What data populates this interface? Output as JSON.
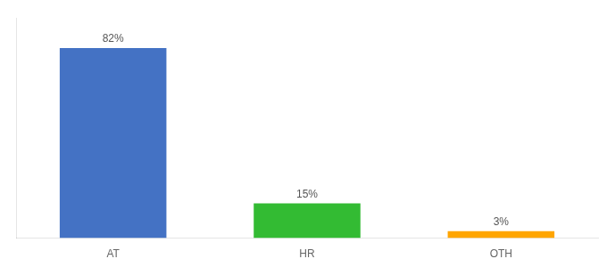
{
  "chart_data": {
    "type": "bar",
    "categories": [
      "AT",
      "HR",
      "OTH"
    ],
    "values": [
      82,
      15,
      3
    ],
    "value_labels": [
      "82%",
      "15%",
      "3%"
    ],
    "colors": [
      "#4472C4",
      "#33BB33",
      "#FFA500"
    ],
    "ylim": [
      0,
      95
    ],
    "data_labels": true,
    "tick_labels": "x",
    "grid": false
  }
}
